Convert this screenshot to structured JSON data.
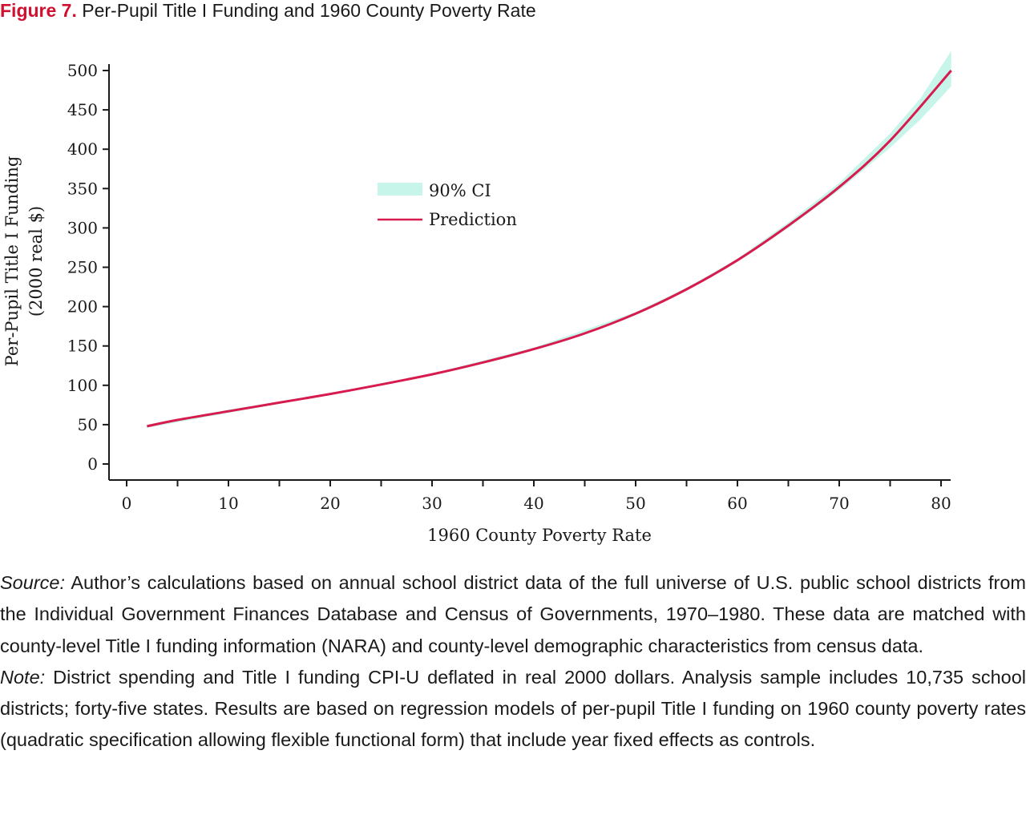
{
  "figure": {
    "label": "Figure 7.",
    "title": "Per-Pupil Title I Funding and 1960 County Poverty Rate"
  },
  "colors": {
    "title_label": "#d0102f",
    "prediction": "#d81b4f",
    "ci_band": "#c7f5e9",
    "axis": "#1a1a1a"
  },
  "chart_data": {
    "type": "line",
    "xlabel": "1960 County Poverty Rate",
    "ylabel": [
      "Per-Pupil Title I Funding",
      "(2000 real $)"
    ],
    "xlim": [
      0,
      81
    ],
    "ylim": [
      0,
      500
    ],
    "x_ticks": [
      0,
      10,
      20,
      30,
      40,
      50,
      60,
      70,
      80
    ],
    "x_minor_ticks": [
      5,
      15,
      25,
      35,
      45,
      55,
      65,
      75
    ],
    "y_ticks": [
      0,
      50,
      100,
      150,
      200,
      250,
      300,
      350,
      400,
      450,
      500
    ],
    "grid": false,
    "legend": {
      "position": "upper-left-center",
      "entries": [
        {
          "label": "90% CI",
          "kind": "band"
        },
        {
          "label": "Prediction",
          "kind": "line"
        }
      ]
    },
    "series": [
      {
        "name": "Prediction",
        "x": [
          2,
          5,
          10,
          15,
          20,
          25,
          30,
          35,
          40,
          45,
          50,
          55,
          60,
          65,
          70,
          75,
          81
        ],
        "y": [
          48,
          56,
          67,
          78,
          89,
          101,
          114,
          129,
          146,
          166,
          191,
          222,
          259,
          303,
          352,
          411,
          500
        ]
      },
      {
        "name": "90% CI",
        "x": [
          2,
          10,
          20,
          30,
          40,
          50,
          55,
          60,
          65,
          70,
          75,
          78,
          81
        ],
        "lower": [
          46,
          65,
          88,
          113,
          145,
          189,
          220,
          257,
          300,
          348,
          402,
          438,
          480
        ],
        "upper": [
          50,
          69,
          90,
          115,
          148,
          193,
          224,
          261,
          307,
          357,
          420,
          465,
          525
        ]
      }
    ]
  },
  "source": {
    "lead": "Source:",
    "text": " Author’s calculations based on annual school district data of the full universe of U.S. public school districts from the Individual Government Finances Database and Census of Governments, 1970–1980. These data are matched with county-level Title I funding information (NARA) and county-level demographic characteristics from census data."
  },
  "note": {
    "lead": "Note:",
    "text": " District spending and Title I funding CPI-U deflated in real 2000 dollars. Analysis sample includes 10,735 school districts; forty-five states. Results are based on regression models of per-pupil Title I fund­ing on 1960 county poverty rates (quadratic specification allowing flexible functional form) that include year fixed effects as controls."
  }
}
